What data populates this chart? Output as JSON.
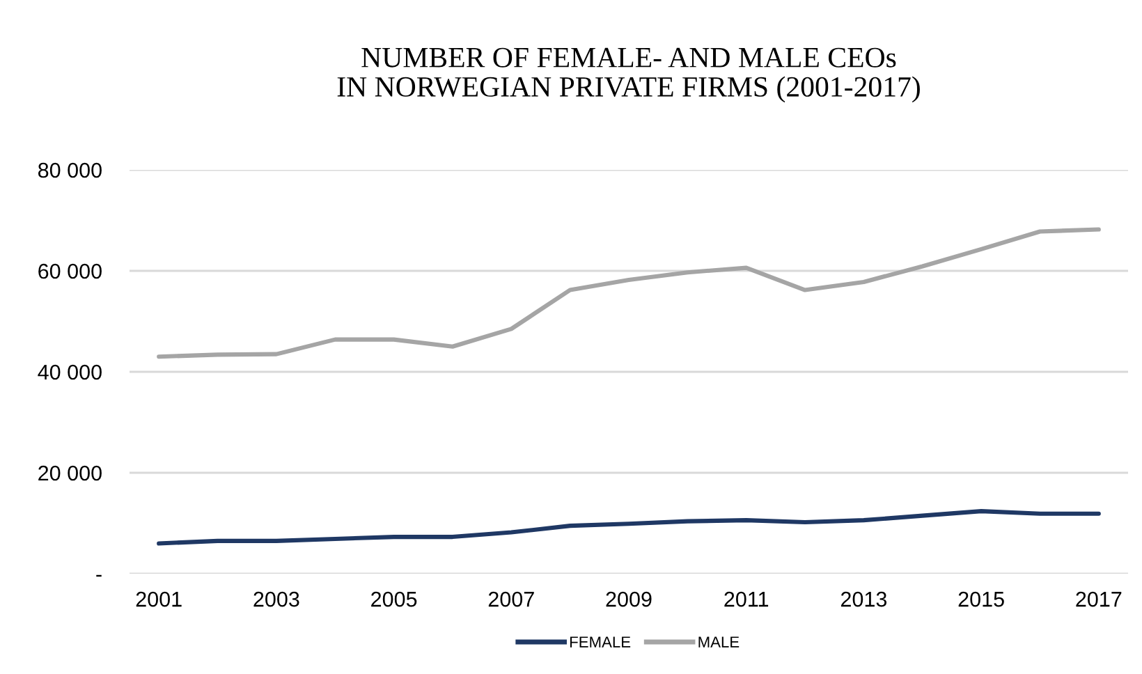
{
  "chart_data": {
    "type": "line",
    "title": "NUMBER OF FEMALE- AND MALE CEOs\nIN NORWEGIAN PRIVATE FIRMS (2001-2017)",
    "categories": [
      "2001",
      null,
      "2003",
      null,
      "2005",
      null,
      "2007",
      null,
      "2009",
      null,
      "2011",
      null,
      "2013",
      null,
      "2015",
      null,
      "2017"
    ],
    "series": [
      {
        "name": "FEMALE",
        "color": "#1f3864",
        "values": [
          6000,
          6500,
          6500,
          6900,
          7300,
          7300,
          8200,
          9500,
          9900,
          10400,
          10600,
          10200,
          10600,
          11500,
          12400,
          11900,
          11900
        ]
      },
      {
        "name": "MALE",
        "color": "#a5a5a5",
        "values": [
          43000,
          43400,
          43500,
          46400,
          46400,
          45000,
          48500,
          56200,
          58200,
          59700,
          60600,
          56200,
          57800,
          60900,
          64300,
          67800,
          68200
        ]
      }
    ],
    "ylim": [
      0,
      80000
    ],
    "yticks": [
      {
        "value": 0,
        "label": "-"
      },
      {
        "value": 20000,
        "label": "20 000"
      },
      {
        "value": 40000,
        "label": "40 000"
      },
      {
        "value": 60000,
        "label": "60 000"
      },
      {
        "value": 80000,
        "label": "80 000"
      }
    ],
    "grid": "y",
    "legend": "bottom",
    "marker": "none",
    "line_style": "solid"
  }
}
